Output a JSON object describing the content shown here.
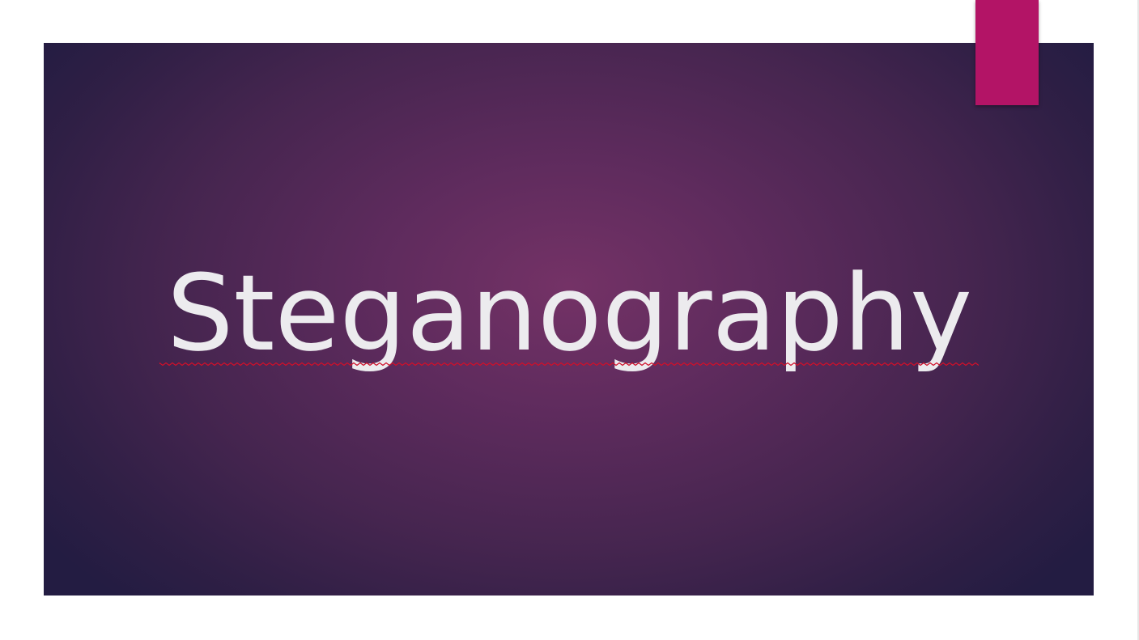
{
  "slide": {
    "title": "Steganography"
  },
  "theme": {
    "background_center": "#743266",
    "background_edge": "#231c42",
    "accent_tab_color": "#b31466",
    "title_color": "#ecebee",
    "spellcheck_color": "#d0102a"
  }
}
